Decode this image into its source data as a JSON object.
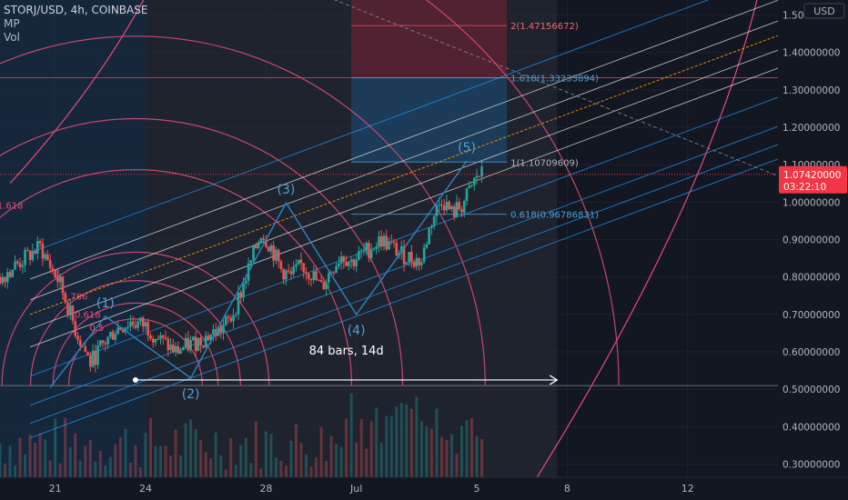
{
  "header": {
    "symbol": "STORJ/USD, 4h, COINBASE",
    "indicator_1": "MP",
    "indicator_2": "Vol"
  },
  "colors": {
    "background": "#131722",
    "grid": "#1e222d",
    "axis_text": "#b2b5be",
    "candle_up": "#26a69a",
    "candle_down": "#ef5350",
    "fib_arc": "#e84d7a",
    "fib_channel": "#2196f3",
    "fib_channel_light": "#e0e0e0",
    "fib_channel_mid": "#ff9800",
    "elliott_wave": "#2f7fb8",
    "wave_label": "#4aa3d8",
    "price_badge": "#f23645",
    "position_profit": "#1c3f5e",
    "position_loss": "#5a2232",
    "highlight_level": "#b83c4a"
  },
  "chart_data": {
    "type": "candlestick",
    "y_axis": {
      "unit": "USD",
      "ticks": [
        "1.50000000",
        "1.40000000",
        "1.30000000",
        "1.20000000",
        "1.10000000",
        "1.00000000",
        "0.90000000",
        "0.80000000",
        "0.70000000",
        "0.60000000",
        "0.50000000",
        "0.40000000",
        "0.30000000"
      ],
      "tick_values": [
        1.5,
        1.4,
        1.3,
        1.2,
        1.1,
        1.0,
        0.9,
        0.8,
        0.7,
        0.6,
        0.5,
        0.4,
        0.3
      ],
      "range": [
        0.265,
        1.54
      ]
    },
    "x_axis": {
      "ticks": [
        {
          "label": "21",
          "bar": 0
        },
        {
          "label": "24",
          "bar": 18
        },
        {
          "label": "28",
          "bar": 42
        },
        {
          "label": "Jul",
          "bar": 60
        },
        {
          "label": "5",
          "bar": 84
        },
        {
          "label": "8",
          "bar": 102
        },
        {
          "label": "12",
          "bar": 126
        }
      ],
      "range_bars": [
        -11,
        144
      ]
    },
    "last_price": "1.07420000",
    "last_price_value": 1.0742,
    "countdown": "03:22:10",
    "bar_close_path": [
      [
        -11,
        0.8
      ],
      [
        -7,
        0.84
      ],
      [
        -3,
        0.88
      ],
      [
        1,
        0.78
      ],
      [
        4,
        0.66
      ],
      [
        7,
        0.57
      ],
      [
        9,
        0.61
      ],
      [
        12,
        0.66
      ],
      [
        15,
        0.68
      ],
      [
        18,
        0.67
      ],
      [
        21,
        0.63
      ],
      [
        24,
        0.6
      ],
      [
        27,
        0.62
      ],
      [
        30,
        0.64
      ],
      [
        33,
        0.66
      ],
      [
        35,
        0.69
      ],
      [
        37,
        0.76
      ],
      [
        39,
        0.84
      ],
      [
        41,
        0.92
      ],
      [
        43,
        0.88
      ],
      [
        45,
        0.82
      ],
      [
        47,
        0.8
      ],
      [
        49,
        0.83
      ],
      [
        51,
        0.81
      ],
      [
        53,
        0.77
      ],
      [
        55,
        0.82
      ],
      [
        57,
        0.86
      ],
      [
        59,
        0.84
      ],
      [
        61,
        0.86
      ],
      [
        63,
        0.88
      ],
      [
        65,
        0.9
      ],
      [
        67,
        0.88
      ],
      [
        69,
        0.86
      ],
      [
        71,
        0.85
      ],
      [
        73,
        0.84
      ],
      [
        74,
        0.9
      ],
      [
        75,
        0.95
      ],
      [
        77,
        1.01
      ],
      [
        79,
        0.97
      ],
      [
        81,
        0.99
      ],
      [
        83,
        1.04
      ],
      [
        84,
        1.07
      ],
      [
        85,
        1.074
      ]
    ],
    "fib_channel": {
      "start_bar": -11,
      "start_price": 0.505,
      "base_end_bar": 144,
      "base_end_price": 1.28,
      "levels": [
        -0.5,
        -0.382,
        -0.236,
        0,
        0.236,
        0.382,
        0.5,
        0.618,
        0.786,
        1
      ],
      "width": 0.33
    },
    "fib_arcs": {
      "center_bar": 16,
      "center_price": 0.51,
      "levels": [
        {
          "label": "0.5",
          "ratio": 0.5
        },
        {
          "label": "0.618",
          "ratio": 0.618
        },
        {
          "label": "0.786",
          "ratio": 0.786
        },
        {
          "label": "1",
          "ratio": 1
        },
        {
          "label": "1.618",
          "ratio": 1.618
        },
        {
          "label": "2",
          "ratio": 2
        },
        {
          "label": "2.618",
          "ratio": 2.618
        },
        {
          "label": "3.618",
          "ratio": 3.618
        }
      ],
      "base_radius_price": 0.23
    },
    "elliott_wave": [
      {
        "label": "(1)",
        "bar": 10,
        "price": 0.695
      },
      {
        "label": "(2)",
        "bar": 27,
        "price": 0.53
      },
      {
        "label": "(3)",
        "bar": 46,
        "price": 0.998
      },
      {
        "label": "(4)",
        "bar": 60,
        "price": 0.7
      },
      {
        "label": "(5)",
        "bar": 82,
        "price": 1.11
      }
    ],
    "elliott_wave_start": {
      "bar": -1,
      "price": 0.505
    },
    "fib_levels": [
      {
        "label": "2(1.47156672)",
        "value": 1.47156672
      },
      {
        "label": "1.618(1.33233894)",
        "value": 1.33233894
      },
      {
        "label": "1(1.10709609)",
        "value": 1.10709609
      },
      {
        "label": "0.618(0.96786831)",
        "value": 0.96786831
      }
    ],
    "measure": {
      "label": "84 bars, 14d",
      "start_bar": 16,
      "end_bar": 100,
      "price": 0.525
    },
    "position_box": {
      "start_bar": 59,
      "end_bar": 90,
      "entry_price": 1.10709609,
      "target_price": 1.33233894,
      "stop_price": 1.54
    },
    "horizontal_line": {
      "value": 1.33233894
    },
    "support_line": {
      "value": 0.51
    }
  }
}
